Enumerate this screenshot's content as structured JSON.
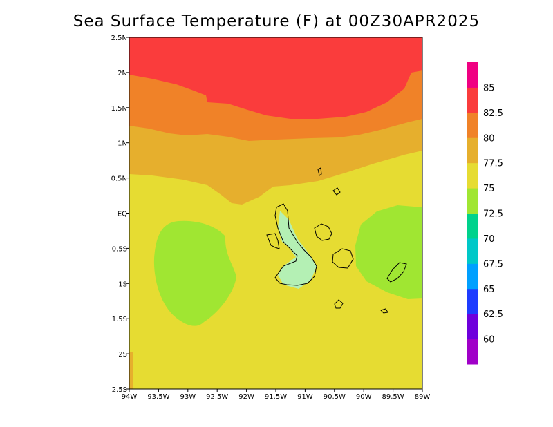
{
  "chart_data": {
    "type": "heatmap",
    "title": "Sea Surface Temperature (F) at 00Z30APR2025",
    "xlabel": "",
    "ylabel": "",
    "xlim": [
      -94,
      -89
    ],
    "ylim": [
      -2.5,
      2.5
    ],
    "x_ticks": [
      "94W",
      "93.5W",
      "93W",
      "92.5W",
      "92W",
      "91.5W",
      "91W",
      "90.5W",
      "90W",
      "89.5W",
      "89W"
    ],
    "y_ticks": [
      "2.5S",
      "2S",
      "1.5S",
      "1S",
      "0.5S",
      "EQ",
      "0.5N",
      "1N",
      "1.5N",
      "2N",
      "2.5N"
    ],
    "colorbar": {
      "labels": [
        "60",
        "62.5",
        "65",
        "67.5",
        "70",
        "72.5",
        "75",
        "77.5",
        "80",
        "82.5",
        "85"
      ],
      "colors": [
        "#a000c8",
        "#6e00dc",
        "#1e3cff",
        "#00a0ff",
        "#00c8c8",
        "#00d28c",
        "#a0e632",
        "#e6dc32",
        "#e6af2d",
        "#f08228",
        "#fa3c3c",
        "#f00082"
      ]
    },
    "regions": [
      {
        "name": "82.5-85",
        "color": "#fa3c3c"
      },
      {
        "name": "80-82.5",
        "color": "#f08228"
      },
      {
        "name": "77.5-80",
        "color": "#e6af2d"
      },
      {
        "name": "75-77.5",
        "color": "#e6dc32"
      },
      {
        "name": "72.5-75",
        "color": "#a0e632"
      },
      {
        "name": "70-72.5 (light)",
        "color": "#b4f0b4"
      }
    ],
    "grid": false
  }
}
